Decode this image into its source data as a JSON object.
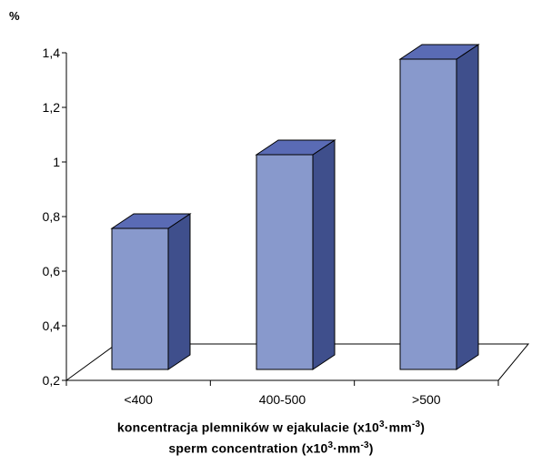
{
  "chart_data": {
    "type": "bar",
    "style": "3d-column",
    "categories": [
      "<400",
      "400-500",
      ">500"
    ],
    "values": [
      0.79,
      1.06,
      1.41
    ],
    "ylabel": "%",
    "ylim": [
      0.2,
      1.4
    ],
    "yticks": [
      "0,2",
      "0,4",
      "0,6",
      "0,8",
      "1",
      "1,2",
      "1,4"
    ],
    "grid": false,
    "legend": "none",
    "xlabel_pl": {
      "main": "koncentracja plemników w ejakulacie (x10",
      "sup1": "3",
      "mid": "·mm",
      "sup2": "-3",
      "end": ")"
    },
    "xlabel_en": {
      "main": "sperm concentration (x10",
      "sup1": "3",
      "mid": "·mm",
      "sup2": "-3",
      "end": ")"
    },
    "colors": {
      "front": "#8899CC",
      "top": "#5A6BB5",
      "side": "#3F4F8C",
      "outline": "#000000"
    }
  }
}
